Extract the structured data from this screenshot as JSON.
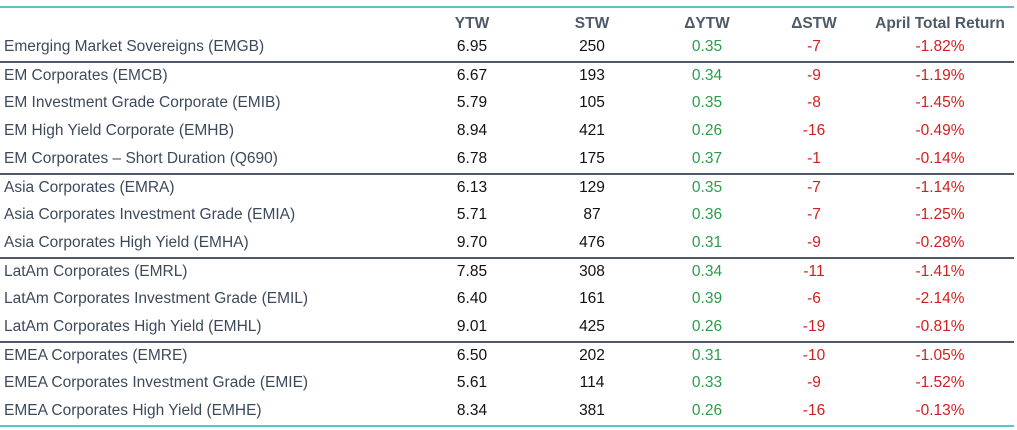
{
  "table": {
    "headers": {
      "name": "",
      "ytw": "YTW",
      "stw": "STW",
      "dytw": "ΔYTW",
      "dstw": "ΔSTW",
      "ret": "April Total Return"
    },
    "rows": [
      {
        "name": "Emerging Market Sovereigns (EMGB)",
        "ytw": "6.95",
        "stw": "250",
        "dytw": "0.35",
        "dstw": "-7",
        "ret": "-1.82%"
      },
      {
        "name": "EM Corporates (EMCB)",
        "ytw": "6.67",
        "stw": "193",
        "dytw": "0.34",
        "dstw": "-9",
        "ret": "-1.19%"
      },
      {
        "name": "EM Investment Grade Corporate (EMIB)",
        "ytw": "5.79",
        "stw": "105",
        "dytw": "0.35",
        "dstw": "-8",
        "ret": "-1.45%"
      },
      {
        "name": "EM High Yield Corporate (EMHB)",
        "ytw": "8.94",
        "stw": "421",
        "dytw": "0.26",
        "dstw": "-16",
        "ret": "-0.49%"
      },
      {
        "name": "EM Corporates – Short Duration (Q690)",
        "ytw": "6.78",
        "stw": "175",
        "dytw": "0.37",
        "dstw": "-1",
        "ret": "-0.14%"
      },
      {
        "name": "Asia Corporates (EMRA)",
        "ytw": "6.13",
        "stw": "129",
        "dytw": "0.35",
        "dstw": "-7",
        "ret": "-1.14%"
      },
      {
        "name": "Asia Corporates Investment Grade (EMIA)",
        "ytw": "5.71",
        "stw": "87",
        "dytw": "0.36",
        "dstw": "-7",
        "ret": "-1.25%"
      },
      {
        "name": "Asia Corporates High Yield (EMHA)",
        "ytw": "9.70",
        "stw": "476",
        "dytw": "0.31",
        "dstw": "-9",
        "ret": "-0.28%"
      },
      {
        "name": "LatAm Corporates (EMRL)",
        "ytw": "7.85",
        "stw": "308",
        "dytw": "0.34",
        "dstw": "-11",
        "ret": "-1.41%"
      },
      {
        "name": "LatAm Corporates Investment Grade (EMIL)",
        "ytw": "6.40",
        "stw": "161",
        "dytw": "0.39",
        "dstw": "-6",
        "ret": "-2.14%"
      },
      {
        "name": "LatAm Corporates High Yield (EMHL)",
        "ytw": "9.01",
        "stw": "425",
        "dytw": "0.26",
        "dstw": "-19",
        "ret": "-0.81%"
      },
      {
        "name": "EMEA Corporates (EMRE)",
        "ytw": "6.50",
        "stw": "202",
        "dytw": "0.31",
        "dstw": "-10",
        "ret": "-1.05%"
      },
      {
        "name": "EMEA Corporates Investment Grade (EMIE)",
        "ytw": "5.61",
        "stw": "114",
        "dytw": "0.33",
        "dstw": "-9",
        "ret": "-1.52%"
      },
      {
        "name": "EMEA Corporates High Yield (EMHE)",
        "ytw": "8.34",
        "stw": "381",
        "dytw": "0.26",
        "dstw": "-16",
        "ret": "-0.13%"
      }
    ],
    "group_starts": [
      1,
      5,
      8,
      11
    ],
    "colors": {
      "positive": "#2a9d4a",
      "negative": "#d11f1f",
      "header_text": "#4e5a6a",
      "name_text": "#3d4a5c",
      "top_bottom_rule": "#5cc1c9",
      "group_rule": "#4e5a6a"
    }
  }
}
